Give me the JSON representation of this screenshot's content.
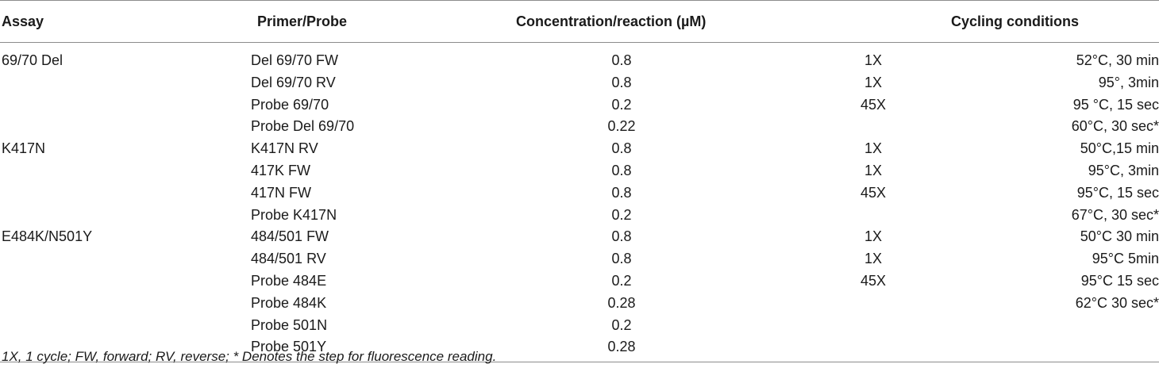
{
  "headers": {
    "assay": "Assay",
    "primer": "Primer/Probe",
    "conc": "Concentration/reaction (µM)",
    "cycling": "Cycling conditions"
  },
  "rows": [
    {
      "assay": "69/70 Del",
      "primer": "Del 69/70 FW",
      "conc": "0.8",
      "cycles": "1X",
      "cond": "52°C, 30 min"
    },
    {
      "assay": "",
      "primer": "Del 69/70 RV",
      "conc": "0.8",
      "cycles": "1X",
      "cond": "95°, 3min"
    },
    {
      "assay": "",
      "primer": "Probe 69/70",
      "conc": "0.2",
      "cycles": "45X",
      "cond": "95 °C, 15 sec"
    },
    {
      "assay": "",
      "primer": "Probe Del 69/70",
      "conc": "0.22",
      "cycles": "",
      "cond": "60°C, 30 sec*"
    },
    {
      "assay": "K417N",
      "primer": "K417N RV",
      "conc": "0.8",
      "cycles": "1X",
      "cond": "50°C,15 min"
    },
    {
      "assay": "",
      "primer": "417K FW",
      "conc": "0.8",
      "cycles": "1X",
      "cond": "95°C, 3min"
    },
    {
      "assay": "",
      "primer": "417N FW",
      "conc": "0.8",
      "cycles": "45X",
      "cond": "95°C, 15 sec"
    },
    {
      "assay": "",
      "primer": "Probe K417N",
      "conc": "0.2",
      "cycles": "",
      "cond": "67°C, 30 sec*"
    },
    {
      "assay": "E484K/N501Y",
      "primer": "484/501 FW",
      "conc": "0.8",
      "cycles": "1X",
      "cond": "50°C 30 min"
    },
    {
      "assay": "",
      "primer": "484/501 RV",
      "conc": "0.8",
      "cycles": "1X",
      "cond": "95°C 5min"
    },
    {
      "assay": "",
      "primer": "Probe 484E",
      "conc": "0.2",
      "cycles": "45X",
      "cond": "95°C 15 sec"
    },
    {
      "assay": "",
      "primer": "Probe 484K",
      "conc": "0.28",
      "cycles": "",
      "cond": "62°C 30 sec*"
    },
    {
      "assay": "",
      "primer": "Probe 501N",
      "conc": "0.2",
      "cycles": "",
      "cond": ""
    },
    {
      "assay": "",
      "primer": "Probe 501Y",
      "conc": "0.28",
      "cycles": "",
      "cond": ""
    }
  ],
  "footnote": "1X, 1 cycle; FW, forward; RV, reverse; * Denotes the step for fluorescence reading."
}
